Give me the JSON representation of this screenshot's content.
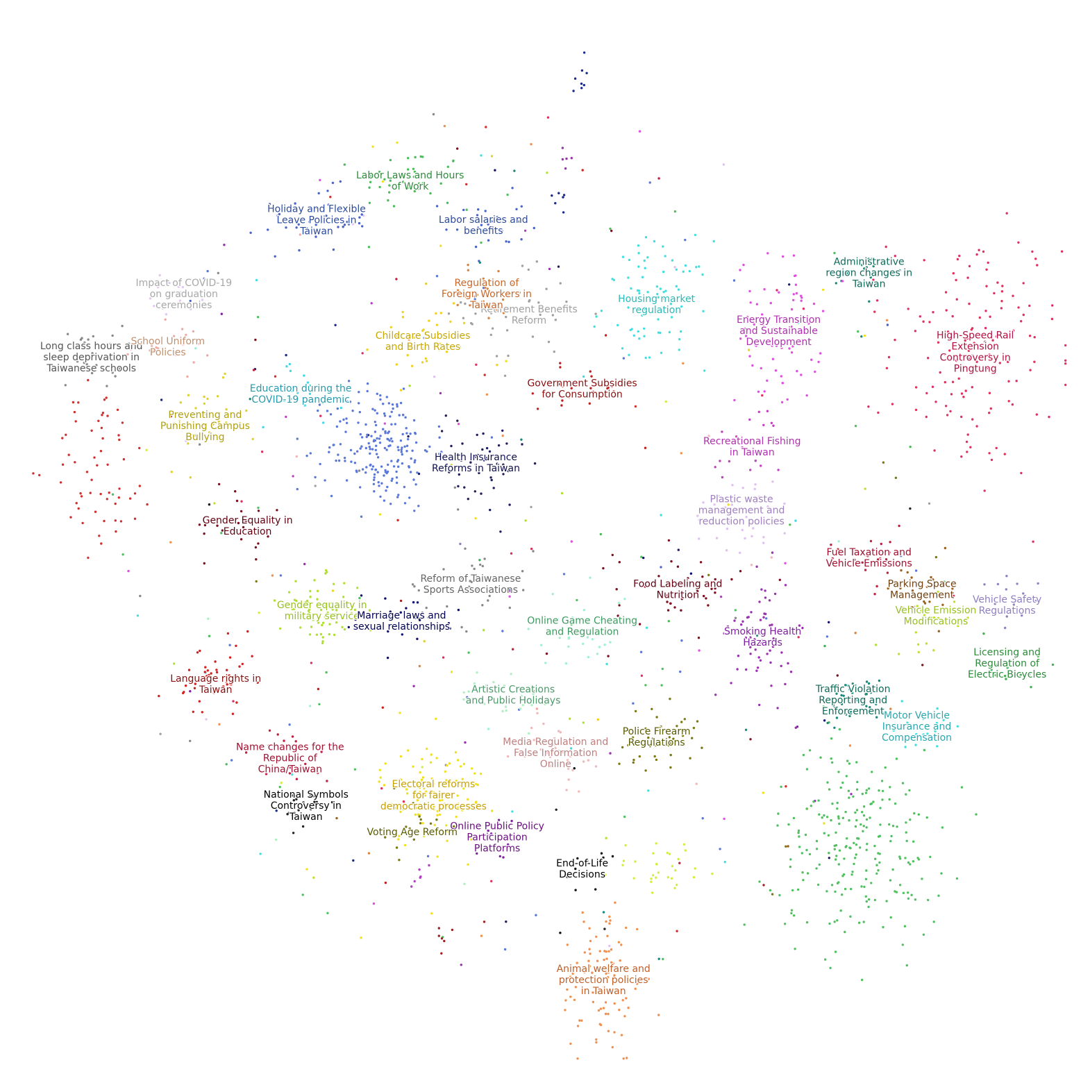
{
  "chart_data": {
    "type": "scatter",
    "title": "",
    "xlabel": "",
    "ylabel": "",
    "axes_visible": false,
    "grid": false,
    "legend": "none",
    "xlim": [
      0,
      100
    ],
    "ylim": [
      0,
      100
    ],
    "clusters": [
      {
        "label": "Labor Laws and Hours of Work",
        "color": "#2e8b3c",
        "point_color": "#4cbb5a",
        "x": 37.3,
        "y": 84.2,
        "spread": [
          2.5,
          1.5
        ],
        "n": 40
      },
      {
        "label": "Holiday and Flexible Leave Policies in Taiwan",
        "color": "#2e4c9c",
        "point_color": "#4a63c8",
        "x": 28.5,
        "y": 80.5,
        "spread": [
          2.5,
          1.5
        ],
        "n": 35
      },
      {
        "label": "Labor salaries and benefits",
        "color": "#2e4c9c",
        "point_color": "#4a63c8",
        "x": 44.2,
        "y": 80.0,
        "spread": [
          2.0,
          1.5
        ],
        "n": 25
      },
      {
        "label": "Retirement Benefits Reform",
        "color": "#a0a0a0",
        "point_color": "#a0a0a0",
        "x": 48.5,
        "y": 71.5,
        "spread": [
          3.0,
          2.5
        ],
        "n": 35
      },
      {
        "label": "Regulation of Foreign Workers in Taiwan",
        "color": "#c8682a",
        "point_color": "#d9843f",
        "x": 44.5,
        "y": 73.5,
        "spread": [
          2.0,
          1.5
        ],
        "n": 25
      },
      {
        "label": "Impact of COVID-19 on graduation ceremonies",
        "color": "#a8a8a8",
        "point_color": "#e0c8f0",
        "x": 16.0,
        "y": 73.5,
        "spread": [
          1.5,
          1.0
        ],
        "n": 15
      },
      {
        "label": "Long class hours and sleep deprivation in Taiwanese schools",
        "color": "#555555",
        "point_color": "#888888",
        "x": 7.3,
        "y": 67.5,
        "spread": [
          1.5,
          1.5
        ],
        "n": 25
      },
      {
        "label": "School Uniform Policies",
        "color": "#c09070",
        "point_color": "#f0a8a0",
        "x": 14.5,
        "y": 68.5,
        "spread": [
          2.0,
          1.0
        ],
        "n": 20
      },
      {
        "label": "Childcare Subsidies and Birth Rates",
        "color": "#c8a800",
        "point_color": "#f0d020",
        "x": 38.5,
        "y": 69.0,
        "spread": [
          2.5,
          2.0
        ],
        "n": 30
      },
      {
        "label": "Housing market regulation",
        "color": "#2bb8b8",
        "point_color": "#40e0e0",
        "x": 60.5,
        "y": 72.5,
        "spread": [
          2.5,
          3.0
        ],
        "n": 80
      },
      {
        "label": "Administrative region changes in Taiwan",
        "color": "#106a5a",
        "point_color": "#1a8a78",
        "x": 80.5,
        "y": 75.5,
        "spread": [
          1.5,
          1.0
        ],
        "n": 20
      },
      {
        "label": "Energy Transition and Sustainable Development",
        "color": "#b030b0",
        "point_color": "#e050e0",
        "x": 72.0,
        "y": 70.0,
        "spread": [
          2.0,
          3.5
        ],
        "n": 70
      },
      {
        "label": "High-Speed Rail Extension Controversy in Pingtung",
        "color": "#b01040",
        "point_color": "#e03060",
        "x": 90.5,
        "y": 68.0,
        "spread": [
          4.0,
          6.0
        ],
        "n": 140
      },
      {
        "label": "Education during the COVID-19 pandemic",
        "color": "#2a9aaa",
        "point_color": "#40d8e8",
        "x": 27.0,
        "y": 64.0,
        "spread": [
          2.0,
          1.5
        ],
        "n": 20
      },
      {
        "label": "Government Subsidies for Consumption",
        "color": "#8a1010",
        "point_color": "#c02020",
        "x": 53.5,
        "y": 64.5,
        "spread": [
          2.0,
          1.0
        ],
        "n": 20
      },
      {
        "label": "Preventing and Punishing Campus Bullying",
        "color": "#b0a010",
        "point_color": "#e0d030",
        "x": 18.0,
        "y": 61.0,
        "spread": [
          2.0,
          2.0
        ],
        "n": 30
      },
      {
        "label": "Health Insurance Reforms in Taiwan",
        "color": "#101050",
        "point_color": "#202060",
        "x": 43.5,
        "y": 57.5,
        "spread": [
          2.5,
          2.5
        ],
        "n": 45
      },
      {
        "label": "",
        "color": "#4a63c8",
        "point_color": "#5a78d8",
        "x": 34.5,
        "y": 59.0,
        "spread": [
          2.5,
          3.0
        ],
        "n": 200
      },
      {
        "label": "",
        "color": "#d03030",
        "point_color": "#d03030",
        "x": 8.5,
        "y": 57.0,
        "spread": [
          2.5,
          4.0
        ],
        "n": 60
      },
      {
        "label": "Recreational Fishing in Taiwan",
        "color": "#b030b0",
        "point_color": "#c040c0",
        "x": 69.5,
        "y": 59.0,
        "spread": [
          2.0,
          2.0
        ],
        "n": 20
      },
      {
        "label": "Plastic waste management and reduction policies",
        "color": "#a080c0",
        "point_color": "#e0c0f0",
        "x": 68.5,
        "y": 53.0,
        "spread": [
          2.5,
          2.0
        ],
        "n": 35
      },
      {
        "label": "Gender Equality in Education",
        "color": "#600010",
        "point_color": "#7a1020",
        "x": 22.0,
        "y": 51.5,
        "spread": [
          2.0,
          1.5
        ],
        "n": 20
      },
      {
        "label": "Fuel Taxation and Vehicle Emissions",
        "color": "#a01030",
        "point_color": "#c02040",
        "x": 80.5,
        "y": 48.5,
        "spread": [
          2.0,
          1.5
        ],
        "n": 25
      },
      {
        "label": "Reform of Taiwanese Sports Associations",
        "color": "#666666",
        "point_color": "#888888",
        "x": 43.0,
        "y": 46.0,
        "spread": [
          3.0,
          2.0
        ],
        "n": 30
      },
      {
        "label": "Food Labeling and Nutrition",
        "color": "#600010",
        "point_color": "#801020",
        "x": 62.5,
        "y": 45.5,
        "spread": [
          3.0,
          2.0
        ],
        "n": 40
      },
      {
        "label": "Parking Space Management",
        "color": "#704010",
        "point_color": "#a06020",
        "x": 85.5,
        "y": 45.5,
        "spread": [
          2.0,
          1.5
        ],
        "n": 20
      },
      {
        "label": "Vehicle Emission Modifications",
        "color": "#98c020",
        "point_color": "#c0e030",
        "x": 86.8,
        "y": 43.0,
        "spread": [
          2.0,
          1.5
        ],
        "n": 20
      },
      {
        "label": "Vehicle Safety Regulations",
        "color": "#9080c0",
        "point_color": "#9080c0",
        "x": 93.5,
        "y": 44.0,
        "spread": [
          1.5,
          1.5
        ],
        "n": 15
      },
      {
        "label": "Gender equality in military service",
        "color": "#98c020",
        "point_color": "#b0e030",
        "x": 29.0,
        "y": 43.5,
        "spread": [
          2.0,
          1.5
        ],
        "n": 70
      },
      {
        "label": "Marriage laws and sexual relationships",
        "color": "#000050",
        "point_color": "#101070",
        "x": 36.5,
        "y": 42.5,
        "spread": [
          3.0,
          1.5
        ],
        "n": 30
      },
      {
        "label": "Online Game Cheating and Regulation",
        "color": "#3c9a60",
        "point_color": "#a0f0d0",
        "x": 53.5,
        "y": 42.0,
        "spread": [
          2.5,
          2.0
        ],
        "n": 30
      },
      {
        "label": "Smoking Health Hazards",
        "color": "#8020a0",
        "point_color": "#9a30b0",
        "x": 70.5,
        "y": 41.0,
        "spread": [
          1.5,
          3.0
        ],
        "n": 60
      },
      {
        "label": "Licensing and Regulation of Electric Bicycles",
        "color": "#2e8b3c",
        "point_color": "#40b050",
        "x": 93.5,
        "y": 38.5,
        "spread": [
          1.5,
          2.0
        ],
        "n": 15
      },
      {
        "label": "Language rights in Taiwan",
        "color": "#8a1010",
        "point_color": "#d02020",
        "x": 19.0,
        "y": 36.5,
        "spread": [
          2.0,
          2.0
        ],
        "n": 45
      },
      {
        "label": "Traffic Violation Reporting and Enforcement",
        "color": "#106a5a",
        "point_color": "#1a8a7a",
        "x": 79.0,
        "y": 35.0,
        "spread": [
          1.5,
          1.0
        ],
        "n": 40
      },
      {
        "label": "Artistic Creations and Public Holidays",
        "color": "#4a9a6a",
        "point_color": "#b0f0c0",
        "x": 47.0,
        "y": 35.5,
        "spread": [
          2.5,
          1.5
        ],
        "n": 25
      },
      {
        "label": "Motor Vehicle Insurance and Compensation",
        "color": "#2aa8b0",
        "point_color": "#40e0e0",
        "x": 85.0,
        "y": 32.5,
        "spread": [
          1.5,
          1.0
        ],
        "n": 20
      },
      {
        "label": "Police Firearm Regulations",
        "color": "#5a5a00",
        "point_color": "#7a7a10",
        "x": 60.5,
        "y": 31.5,
        "spread": [
          2.0,
          1.5
        ],
        "n": 40
      },
      {
        "label": "Media Regulation and False Information Online",
        "color": "#c08080",
        "point_color": "#f0b8b8",
        "x": 51.0,
        "y": 30.0,
        "spread": [
          1.5,
          1.5
        ],
        "n": 40
      },
      {
        "label": "Name changes for the Republic of China/Taiwan",
        "color": "#a01030",
        "point_color": "#c02040",
        "x": 26.0,
        "y": 29.5,
        "spread": [
          2.0,
          1.5
        ],
        "n": 20
      },
      {
        "label": "Electoral reforms for fairer democratic processes",
        "color": "#c8a000",
        "point_color": "#f0e020",
        "x": 39.5,
        "y": 26.0,
        "spread": [
          2.5,
          2.5
        ],
        "n": 110
      },
      {
        "label": "National Symbols Controversy in Taiwan",
        "color": "#000000",
        "point_color": "#222222",
        "x": 27.5,
        "y": 25.0,
        "spread": [
          1.0,
          1.0
        ],
        "n": 20
      },
      {
        "label": "Online Public Policy Participation Platforms",
        "color": "#6a1080",
        "point_color": "#8020a0",
        "x": 45.5,
        "y": 22.0,
        "spread": [
          1.0,
          1.5
        ],
        "n": 15
      },
      {
        "label": "Voting Age Reform",
        "color": "#5a5a00",
        "point_color": "#7a7a10",
        "x": 37.5,
        "y": 22.5,
        "spread": [
          1.5,
          1.5
        ],
        "n": 15
      },
      {
        "label": "End-of-Life Decisions",
        "color": "#000000",
        "point_color": "#111111",
        "x": 53.5,
        "y": 19.0,
        "spread": [
          1.0,
          1.0
        ],
        "n": 15
      },
      {
        "label": "",
        "color": "#40b050",
        "point_color": "#50c060",
        "x": 79.5,
        "y": 21.5,
        "spread": [
          4.0,
          4.5
        ],
        "n": 230
      },
      {
        "label": "",
        "color": "#c0e030",
        "point_color": "#d0f040",
        "x": 61.5,
        "y": 19.0,
        "spread": [
          2.5,
          1.5
        ],
        "n": 30
      },
      {
        "label": "Animal welfare and protection policies in Taiwan",
        "color": "#c0602a",
        "point_color": "#f09050",
        "x": 55.5,
        "y": 8.5,
        "spread": [
          2.0,
          4.0
        ],
        "n": 90
      },
      {
        "label": "",
        "color": "#1a2a8a",
        "point_color": "#1a2a8a",
        "x": 53.3,
        "y": 94.0,
        "spread": [
          0.3,
          0.8
        ],
        "n": 8
      },
      {
        "label": "",
        "color": "#8020a0",
        "point_color": "#9a30b0",
        "x": 51.8,
        "y": 86.5,
        "spread": [
          0.3,
          0.5
        ],
        "n": 5
      },
      {
        "label": "",
        "color": "#1a2a8a",
        "point_color": "#1a2a8a",
        "x": 51.6,
        "y": 82.5,
        "spread": [
          0.3,
          0.6
        ],
        "n": 6
      },
      {
        "label": "",
        "color": "#9a30b0",
        "point_color": "#b040c0",
        "x": 38.0,
        "y": 18.0,
        "spread": [
          0.3,
          0.6
        ],
        "n": 6
      },
      {
        "label": "",
        "color": "#8a1010",
        "point_color": "#a02020",
        "x": 40.5,
        "y": 13.0,
        "spread": [
          0.4,
          0.8
        ],
        "n": 6
      }
    ]
  }
}
